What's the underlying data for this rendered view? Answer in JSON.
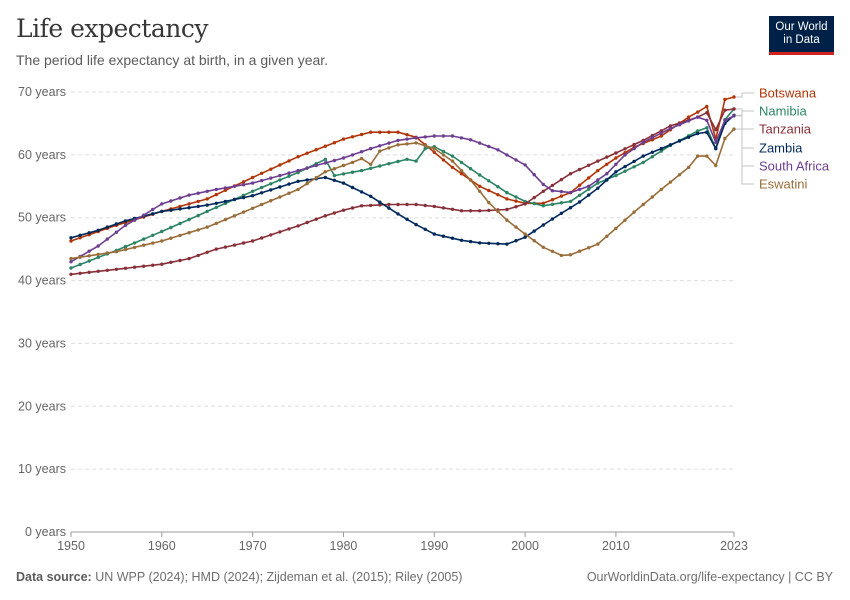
{
  "header": {
    "title": "Life expectancy",
    "subtitle": "The period life expectancy at birth, in a given year.",
    "logo_line1": "Our World",
    "logo_line2": "in Data"
  },
  "footer": {
    "source_label": "Data source:",
    "source_text": " UN WPP (2024); HMD (2024); Zijdeman et al. (2015); Riley (2005)",
    "url_text": "OurWorldinData.org/life-expectancy | CC BY"
  },
  "colors": {
    "brand_navy": "#002147",
    "brand_red": "#ce261e",
    "grid": "#dddddd"
  },
  "chart_data": {
    "type": "line",
    "x_label": "",
    "y_label": "",
    "x_range": [
      1950,
      2023
    ],
    "y_range": [
      0,
      70
    ],
    "y_ticks": [
      0,
      10,
      20,
      30,
      40,
      50,
      60,
      70
    ],
    "y_tick_labels": [
      "0 years",
      "10 years",
      "20 years",
      "30 years",
      "40 years",
      "50 years",
      "60 years",
      "70 years"
    ],
    "x_ticks": [
      1950,
      1960,
      1970,
      1980,
      1990,
      2000,
      2010,
      2023
    ],
    "x_tick_labels": [
      "1950",
      "1960",
      "1970",
      "1980",
      "1990",
      "2000",
      "2010",
      "2023"
    ],
    "grid": "horizontal dashed",
    "legend": "line-end labels at right",
    "series": [
      {
        "name": "Botswana",
        "color": "#b13507",
        "points": [
          [
            1950,
            46.3
          ],
          [
            1955,
            48.8
          ],
          [
            1960,
            51.0
          ],
          [
            1965,
            53.0
          ],
          [
            1970,
            56.4
          ],
          [
            1975,
            59.7
          ],
          [
            1980,
            62.5
          ],
          [
            1983,
            63.6
          ],
          [
            1986,
            63.6
          ],
          [
            1988,
            62.8
          ],
          [
            1990,
            60.4
          ],
          [
            1992,
            58.0
          ],
          [
            1995,
            55.0
          ],
          [
            1998,
            53.0
          ],
          [
            2000,
            52.3
          ],
          [
            2002,
            52.3
          ],
          [
            2005,
            54.0
          ],
          [
            2008,
            57.5
          ],
          [
            2010,
            59.5
          ],
          [
            2012,
            61.2
          ],
          [
            2015,
            63.0
          ],
          [
            2018,
            66.0
          ],
          [
            2019,
            66.8
          ],
          [
            2020,
            67.7
          ],
          [
            2021,
            62.5
          ],
          [
            2022,
            68.8
          ],
          [
            2023,
            69.2
          ]
        ]
      },
      {
        "name": "Namibia",
        "color": "#2c8465",
        "points": [
          [
            1950,
            42.0
          ],
          [
            1955,
            44.8
          ],
          [
            1960,
            47.8
          ],
          [
            1965,
            51.0
          ],
          [
            1970,
            54.2
          ],
          [
            1975,
            57.2
          ],
          [
            1978,
            59.3
          ],
          [
            1979,
            56.7
          ],
          [
            1982,
            57.5
          ],
          [
            1985,
            58.6
          ],
          [
            1987,
            59.3
          ],
          [
            1988,
            59.0
          ],
          [
            1989,
            61.0
          ],
          [
            1990,
            61.3
          ],
          [
            1992,
            59.8
          ],
          [
            1995,
            56.8
          ],
          [
            1998,
            54.0
          ],
          [
            2000,
            52.6
          ],
          [
            2002,
            51.9
          ],
          [
            2005,
            52.6
          ],
          [
            2008,
            55.5
          ],
          [
            2010,
            56.7
          ],
          [
            2013,
            58.8
          ],
          [
            2016,
            61.5
          ],
          [
            2019,
            63.8
          ],
          [
            2020,
            64.3
          ],
          [
            2021,
            61.0
          ],
          [
            2022,
            65.6
          ],
          [
            2023,
            67.3
          ]
        ]
      },
      {
        "name": "Tanzania",
        "color": "#883039",
        "points": [
          [
            1950,
            41.0
          ],
          [
            1955,
            41.8
          ],
          [
            1960,
            42.6
          ],
          [
            1963,
            43.5
          ],
          [
            1966,
            45.0
          ],
          [
            1970,
            46.3
          ],
          [
            1975,
            48.7
          ],
          [
            1978,
            50.3
          ],
          [
            1980,
            51.2
          ],
          [
            1982,
            51.9
          ],
          [
            1985,
            52.1
          ],
          [
            1988,
            52.1
          ],
          [
            1990,
            51.8
          ],
          [
            1993,
            51.1
          ],
          [
            1995,
            51.1
          ],
          [
            1998,
            51.3
          ],
          [
            2000,
            52.2
          ],
          [
            2002,
            54.2
          ],
          [
            2005,
            57.0
          ],
          [
            2008,
            59.0
          ],
          [
            2010,
            60.3
          ],
          [
            2013,
            62.3
          ],
          [
            2016,
            64.6
          ],
          [
            2019,
            66.0
          ],
          [
            2020,
            66.7
          ],
          [
            2021,
            64.0
          ],
          [
            2022,
            67.1
          ],
          [
            2023,
            67.3
          ]
        ]
      },
      {
        "name": "Zambia",
        "color": "#00295b",
        "points": [
          [
            1950,
            46.8
          ],
          [
            1953,
            48.0
          ],
          [
            1956,
            49.5
          ],
          [
            1960,
            51.0
          ],
          [
            1963,
            51.6
          ],
          [
            1965,
            52.0
          ],
          [
            1970,
            53.5
          ],
          [
            1975,
            55.8
          ],
          [
            1978,
            56.4
          ],
          [
            1980,
            55.5
          ],
          [
            1983,
            53.4
          ],
          [
            1986,
            50.6
          ],
          [
            1988,
            48.9
          ],
          [
            1990,
            47.4
          ],
          [
            1993,
            46.4
          ],
          [
            1995,
            46.0
          ],
          [
            1998,
            45.8
          ],
          [
            2000,
            46.9
          ],
          [
            2003,
            49.8
          ],
          [
            2006,
            52.5
          ],
          [
            2008,
            54.7
          ],
          [
            2010,
            57.3
          ],
          [
            2013,
            59.8
          ],
          [
            2016,
            61.6
          ],
          [
            2019,
            63.4
          ],
          [
            2020,
            63.6
          ],
          [
            2021,
            61.0
          ],
          [
            2022,
            65.0
          ],
          [
            2023,
            66.3
          ]
        ]
      },
      {
        "name": "South Africa",
        "color": "#6d3e91",
        "points": [
          [
            1950,
            43.0
          ],
          [
            1953,
            45.5
          ],
          [
            1956,
            48.8
          ],
          [
            1958,
            50.4
          ],
          [
            1960,
            52.2
          ],
          [
            1963,
            53.6
          ],
          [
            1966,
            54.5
          ],
          [
            1970,
            55.5
          ],
          [
            1975,
            57.5
          ],
          [
            1980,
            59.5
          ],
          [
            1983,
            61.0
          ],
          [
            1986,
            62.3
          ],
          [
            1988,
            62.7
          ],
          [
            1990,
            63.0
          ],
          [
            1992,
            63.0
          ],
          [
            1994,
            62.4
          ],
          [
            1997,
            60.8
          ],
          [
            2000,
            58.4
          ],
          [
            2002,
            55.3
          ],
          [
            2003,
            54.3
          ],
          [
            2005,
            54.0
          ],
          [
            2007,
            55.0
          ],
          [
            2009,
            57.0
          ],
          [
            2011,
            60.0
          ],
          [
            2013,
            62.0
          ],
          [
            2016,
            64.2
          ],
          [
            2019,
            66.0
          ],
          [
            2020,
            65.5
          ],
          [
            2021,
            62.0
          ],
          [
            2022,
            65.5
          ],
          [
            2023,
            66.2
          ]
        ]
      },
      {
        "name": "Eswatini",
        "color": "#996d39",
        "points": [
          [
            1950,
            43.5
          ],
          [
            1955,
            44.6
          ],
          [
            1960,
            46.3
          ],
          [
            1965,
            48.5
          ],
          [
            1970,
            51.5
          ],
          [
            1975,
            54.5
          ],
          [
            1978,
            57.3
          ],
          [
            1981,
            58.8
          ],
          [
            1982,
            59.4
          ],
          [
            1983,
            58.5
          ],
          [
            1984,
            60.6
          ],
          [
            1986,
            61.6
          ],
          [
            1988,
            61.9
          ],
          [
            1990,
            61.0
          ],
          [
            1992,
            59.0
          ],
          [
            1994,
            56.0
          ],
          [
            1996,
            52.4
          ],
          [
            1998,
            49.6
          ],
          [
            2000,
            47.4
          ],
          [
            2002,
            45.3
          ],
          [
            2004,
            44.0
          ],
          [
            2005,
            44.1
          ],
          [
            2008,
            45.8
          ],
          [
            2010,
            48.3
          ],
          [
            2012,
            50.9
          ],
          [
            2015,
            54.5
          ],
          [
            2018,
            58.0
          ],
          [
            2019,
            59.8
          ],
          [
            2020,
            59.8
          ],
          [
            2021,
            58.3
          ],
          [
            2022,
            62.6
          ],
          [
            2023,
            64.1
          ]
        ]
      }
    ]
  }
}
